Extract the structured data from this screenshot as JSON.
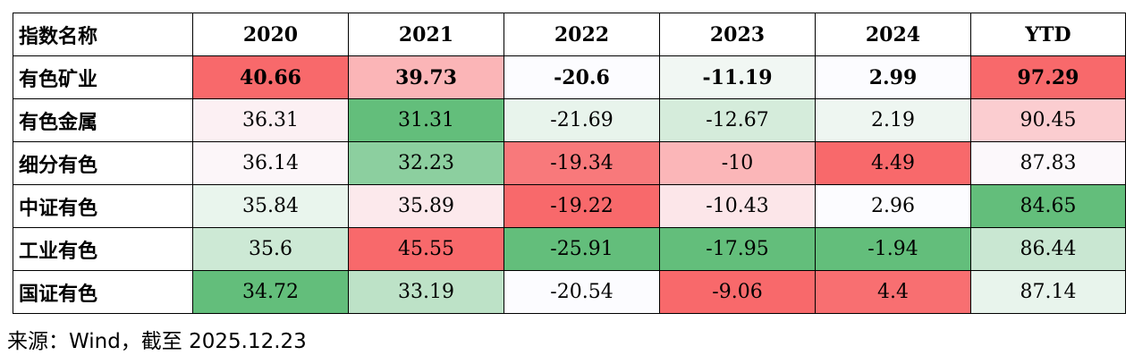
{
  "table": {
    "header": [
      "指数名称",
      "2020",
      "2021",
      "2022",
      "2023",
      "2024",
      "YTD"
    ],
    "rows": [
      [
        "有色矿业",
        40.66,
        39.73,
        -20.6,
        -11.19,
        2.99,
        97.29
      ],
      [
        "有色金属",
        36.31,
        31.31,
        -21.69,
        -12.67,
        2.19,
        90.45
      ],
      [
        "细分有色",
        36.14,
        32.23,
        -19.34,
        -10,
        4.49,
        87.83
      ],
      [
        "中证有色",
        35.84,
        35.89,
        -19.22,
        -10.43,
        2.96,
        84.65
      ],
      [
        "工业有色",
        35.6,
        45.55,
        -25.91,
        -17.95,
        -1.94,
        86.44
      ],
      [
        "国证有色",
        34.72,
        33.19,
        -20.54,
        -9.06,
        4.4,
        87.14
      ]
    ],
    "colors": [
      [
        "#f8696b",
        "#fbb5b7",
        "#fcfcff",
        "#f1f7f3",
        "#fcfcff",
        "#f8696b"
      ],
      [
        "#fcf0f3",
        "#63be7b",
        "#e8f4ec",
        "#d5ecdb",
        "#eef6f1",
        "#fbcdd0"
      ],
      [
        "#fcf6f9",
        "#8ccf9f",
        "#f8797b",
        "#fbb6b8",
        "#f8696b",
        "#fcf8fb"
      ],
      [
        "#e9f5ed",
        "#fce9ec",
        "#f8696b",
        "#fce6e9",
        "#fcfcff",
        "#63be7b"
      ],
      [
        "#cde9d5",
        "#f8696b",
        "#63be7b",
        "#63be7b",
        "#63be7b",
        "#c9e7d2"
      ],
      [
        "#63be7b",
        "#bde2c7",
        "#fcfcff",
        "#f8696b",
        "#f86f71",
        "#e8f4ec"
      ]
    ],
    "bold_rows": [
      0
    ]
  },
  "footer": "来源：Wind，截至 2025.12.23"
}
